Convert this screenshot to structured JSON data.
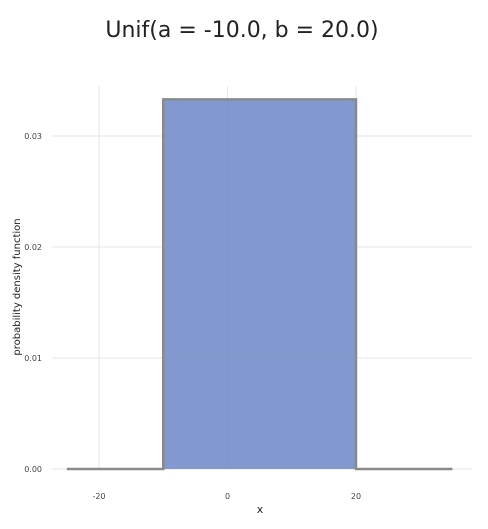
{
  "chart_data": {
    "type": "area",
    "title": "Unif(a = -10.0, b = 20.0)",
    "xlabel": "x",
    "ylabel": "probability density function",
    "xlim": [
      -25,
      35
    ],
    "ylim": [
      0,
      0.0345
    ],
    "xticks": [
      -20,
      0,
      20
    ],
    "xtick_labels": [
      "-20",
      "0",
      "20"
    ],
    "yticks": [
      0.0,
      0.01,
      0.02,
      0.03
    ],
    "ytick_labels": [
      "0.00",
      "0.01",
      "0.02",
      "0.03"
    ],
    "grid": true,
    "legend": "none",
    "series": [
      {
        "x": [
          -25,
          -10,
          -10,
          20,
          20,
          35
        ],
        "y": [
          0,
          0,
          0.0333,
          0.0333,
          0,
          0
        ],
        "fill_range": [
          -10,
          20
        ],
        "fill_color": "#6b87c5",
        "line_color": "#8a8a8a"
      }
    ]
  }
}
